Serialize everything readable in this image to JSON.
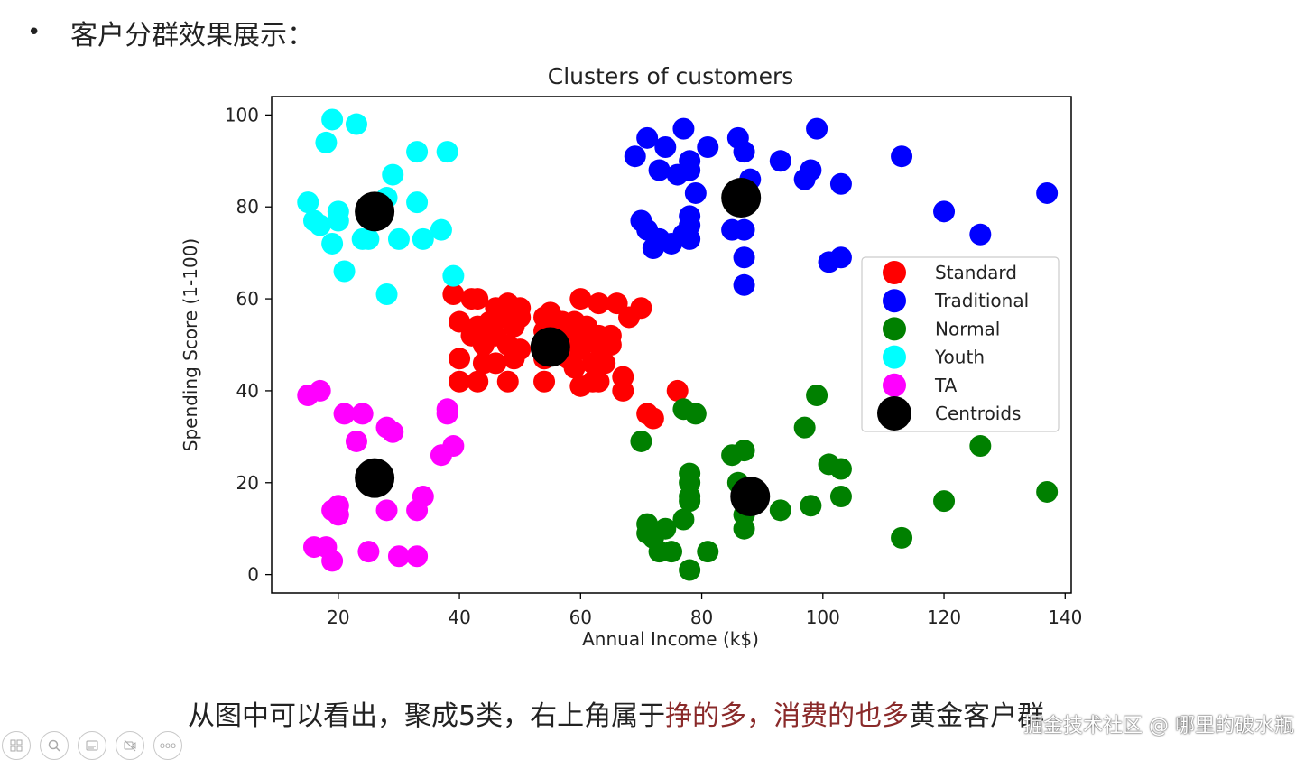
{
  "heading": {
    "bullet": "•",
    "text": "客户分群效果展示："
  },
  "caption": {
    "part1": "从图中可以看出，聚成5类，右上角属于",
    "part2": "挣的多，消费的也多",
    "part3": "黄金客户群"
  },
  "watermark": "掘金技术社区 @ 哪里的破水瓶",
  "toolbar": {
    "icons": [
      "layout-icon",
      "zoom-icon",
      "subtitles-icon",
      "video-off-icon",
      "more-icon"
    ],
    "more_label": "ooo"
  },
  "chart_data": {
    "type": "scatter",
    "title": "Clusters of customers",
    "xlabel": "Annual Income (k$)",
    "ylabel": "Spending Score (1-100)",
    "xlim": [
      9,
      141
    ],
    "ylim": [
      -4,
      104
    ],
    "xticks": [
      20,
      40,
      60,
      80,
      100,
      120,
      140
    ],
    "yticks": [
      0,
      20,
      40,
      60,
      80,
      100
    ],
    "legend_position": "center-right",
    "series": [
      {
        "name": "Standard",
        "color": "#ff0000",
        "points": [
          [
            39,
            61
          ],
          [
            40,
            55
          ],
          [
            40,
            47
          ],
          [
            40,
            42
          ],
          [
            42,
            60
          ],
          [
            42,
            52
          ],
          [
            43,
            60
          ],
          [
            43,
            54
          ],
          [
            43,
            42
          ],
          [
            44,
            50
          ],
          [
            44,
            46
          ],
          [
            45,
            55
          ],
          [
            46,
            58
          ],
          [
            46,
            52
          ],
          [
            46,
            46
          ],
          [
            47,
            56
          ],
          [
            48,
            59
          ],
          [
            48,
            50
          ],
          [
            48,
            42
          ],
          [
            49,
            54
          ],
          [
            49,
            47
          ],
          [
            50,
            58
          ],
          [
            50,
            56
          ],
          [
            50,
            49
          ],
          [
            54,
            56
          ],
          [
            54,
            53
          ],
          [
            54,
            47
          ],
          [
            54,
            42
          ],
          [
            55,
            57
          ],
          [
            57,
            55
          ],
          [
            57,
            51
          ],
          [
            58,
            52
          ],
          [
            58,
            47
          ],
          [
            59,
            55
          ],
          [
            59,
            45
          ],
          [
            60,
            60
          ],
          [
            60,
            52
          ],
          [
            60,
            49
          ],
          [
            60,
            41
          ],
          [
            61,
            54
          ],
          [
            62,
            46
          ],
          [
            62,
            42
          ],
          [
            63,
            59
          ],
          [
            63,
            52
          ],
          [
            63,
            50
          ],
          [
            63,
            42
          ],
          [
            64,
            46
          ],
          [
            65,
            52
          ],
          [
            65,
            50
          ],
          [
            66,
            59
          ],
          [
            67,
            43
          ],
          [
            67,
            40
          ],
          [
            68,
            56
          ],
          [
            70,
            58
          ],
          [
            71,
            35
          ],
          [
            72,
            34
          ],
          [
            76,
            40
          ]
        ]
      },
      {
        "name": "Traditional",
        "color": "#0000ff",
        "points": [
          [
            69,
            91
          ],
          [
            70,
            77
          ],
          [
            71,
            95
          ],
          [
            71,
            75
          ],
          [
            72,
            71
          ],
          [
            73,
            88
          ],
          [
            73,
            73
          ],
          [
            74,
            93
          ],
          [
            75,
            72
          ],
          [
            76,
            87
          ],
          [
            77,
            97
          ],
          [
            77,
            74
          ],
          [
            78,
            90
          ],
          [
            78,
            88
          ],
          [
            78,
            78
          ],
          [
            78,
            76
          ],
          [
            78,
            73
          ],
          [
            79,
            83
          ],
          [
            81,
            93
          ],
          [
            85,
            75
          ],
          [
            86,
            95
          ],
          [
            87,
            92
          ],
          [
            87,
            75
          ],
          [
            87,
            63
          ],
          [
            87,
            69
          ],
          [
            88,
            86
          ],
          [
            93,
            90
          ],
          [
            97,
            86
          ],
          [
            98,
            88
          ],
          [
            99,
            97
          ],
          [
            101,
            68
          ],
          [
            103,
            85
          ],
          [
            103,
            69
          ],
          [
            113,
            91
          ],
          [
            120,
            79
          ],
          [
            126,
            74
          ],
          [
            137,
            83
          ]
        ]
      },
      {
        "name": "Normal",
        "color": "#008000",
        "points": [
          [
            70,
            29
          ],
          [
            71,
            11
          ],
          [
            71,
            9
          ],
          [
            72,
            8
          ],
          [
            73,
            5
          ],
          [
            74,
            10
          ],
          [
            75,
            5
          ],
          [
            77,
            36
          ],
          [
            77,
            12
          ],
          [
            78,
            22
          ],
          [
            78,
            20
          ],
          [
            78,
            17
          ],
          [
            78,
            16
          ],
          [
            78,
            1
          ],
          [
            79,
            35
          ],
          [
            81,
            5
          ],
          [
            85,
            26
          ],
          [
            86,
            20
          ],
          [
            87,
            27
          ],
          [
            87,
            13
          ],
          [
            87,
            10
          ],
          [
            88,
            15
          ],
          [
            93,
            14
          ],
          [
            97,
            32
          ],
          [
            98,
            15
          ],
          [
            99,
            39
          ],
          [
            101,
            24
          ],
          [
            103,
            23
          ],
          [
            103,
            17
          ],
          [
            113,
            8
          ],
          [
            120,
            16
          ],
          [
            126,
            28
          ],
          [
            137,
            18
          ]
        ]
      },
      {
        "name": "Youth",
        "color": "#00ffff",
        "points": [
          [
            15,
            81
          ],
          [
            16,
            77
          ],
          [
            17,
            76
          ],
          [
            18,
            94
          ],
          [
            19,
            99
          ],
          [
            19,
            72
          ],
          [
            20,
            79
          ],
          [
            20,
            77
          ],
          [
            21,
            66
          ],
          [
            23,
            98
          ],
          [
            24,
            73
          ],
          [
            25,
            73
          ],
          [
            28,
            82
          ],
          [
            28,
            61
          ],
          [
            29,
            87
          ],
          [
            30,
            73
          ],
          [
            33,
            92
          ],
          [
            33,
            81
          ],
          [
            34,
            73
          ],
          [
            37,
            75
          ],
          [
            38,
            92
          ],
          [
            39,
            65
          ]
        ]
      },
      {
        "name": "TA",
        "color": "#ff00ff",
        "points": [
          [
            15,
            39
          ],
          [
            16,
            6
          ],
          [
            17,
            40
          ],
          [
            18,
            6
          ],
          [
            19,
            3
          ],
          [
            19,
            14
          ],
          [
            20,
            15
          ],
          [
            20,
            13
          ],
          [
            21,
            35
          ],
          [
            23,
            29
          ],
          [
            24,
            35
          ],
          [
            25,
            5
          ],
          [
            28,
            32
          ],
          [
            28,
            14
          ],
          [
            29,
            31
          ],
          [
            30,
            4
          ],
          [
            33,
            4
          ],
          [
            33,
            14
          ],
          [
            34,
            17
          ],
          [
            37,
            26
          ],
          [
            38,
            35
          ],
          [
            38,
            36
          ],
          [
            39,
            28
          ]
        ]
      },
      {
        "name": "Centroids",
        "color": "#000000",
        "points": [
          [
            26,
            79
          ],
          [
            55,
            49.5
          ],
          [
            86.5,
            82
          ],
          [
            88,
            17
          ],
          [
            26,
            21
          ]
        ]
      }
    ]
  }
}
